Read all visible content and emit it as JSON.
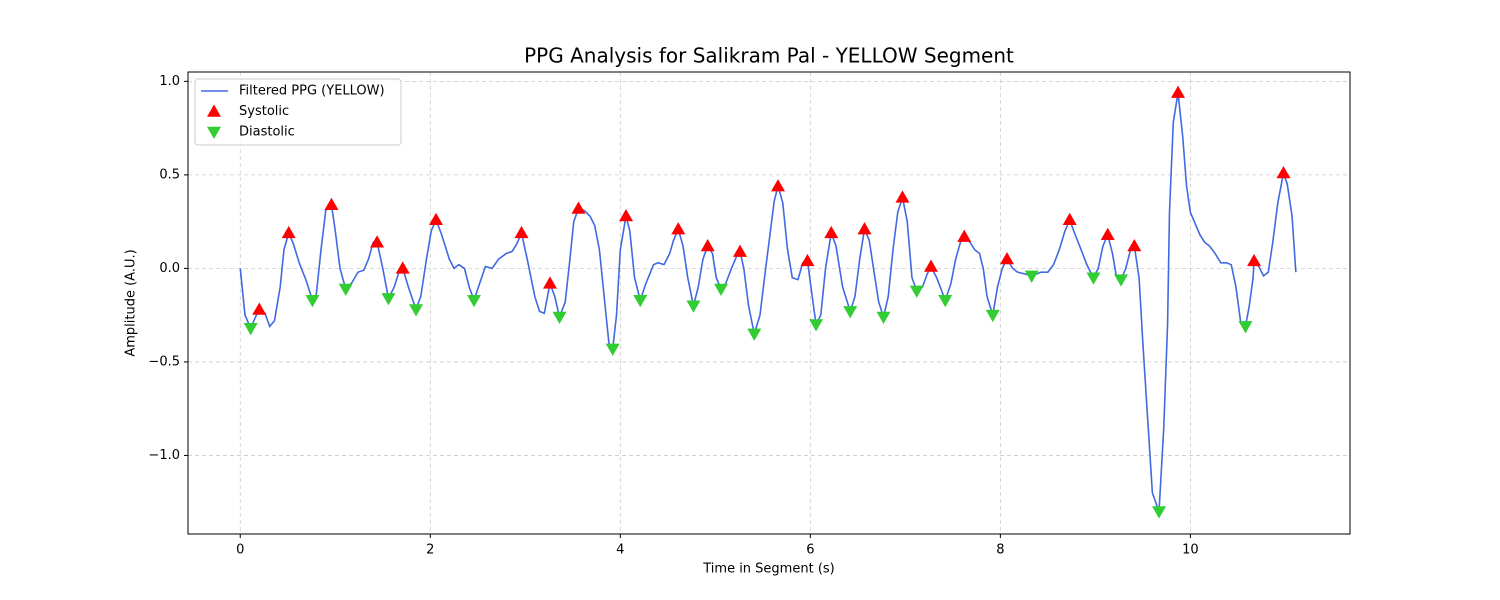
{
  "chart_data": {
    "type": "line",
    "title": "PPG Analysis for Salikram Pal - YELLOW Segment",
    "xlabel": "Time in Segment (s)",
    "ylabel": "Amplitude (A.U.)",
    "xlim": [
      -0.55,
      11.68
    ],
    "ylim": [
      -1.42,
      1.05
    ],
    "xticks": [
      0,
      2,
      4,
      6,
      8,
      10
    ],
    "yticks": [
      {
        "value": -1.0,
        "label": "−1.0"
      },
      {
        "value": -0.5,
        "label": "−0.5"
      },
      {
        "value": 0.0,
        "label": "0.0"
      },
      {
        "value": 0.5,
        "label": "0.5"
      },
      {
        "value": 1.0,
        "label": "1.0"
      }
    ],
    "grid": true,
    "legend": "upper left",
    "series": [
      {
        "name": "Filtered PPG (YELLOW)",
        "color": "#4169e1",
        "marker": "line",
        "x": [
          0,
          0.05,
          0.11,
          0.16,
          0.2,
          0.26,
          0.31,
          0.36,
          0.42,
          0.46,
          0.51,
          0.56,
          0.62,
          0.69,
          0.76,
          0.8,
          0.85,
          0.9,
          0.96,
          1.0,
          1.05,
          1.11,
          1.17,
          1.24,
          1.3,
          1.35,
          1.4,
          1.44,
          1.5,
          1.56,
          1.62,
          1.67,
          1.71,
          1.77,
          1.85,
          1.9,
          1.96,
          2.01,
          2.06,
          2.12,
          2.2,
          2.25,
          2.3,
          2.36,
          2.41,
          2.46,
          2.52,
          2.58,
          2.65,
          2.72,
          2.8,
          2.86,
          2.91,
          2.96,
          3.02,
          3.1,
          3.15,
          3.2,
          3.26,
          3.31,
          3.36,
          3.42,
          3.47,
          3.51,
          3.56,
          3.62,
          3.68,
          3.73,
          3.78,
          3.84,
          3.88,
          3.92,
          3.96,
          4.0,
          4.06,
          4.1,
          4.15,
          4.21,
          4.27,
          4.35,
          4.4,
          4.46,
          4.52,
          4.56,
          4.61,
          4.66,
          4.71,
          4.77,
          4.82,
          4.87,
          4.92,
          4.97,
          5.01,
          5.06,
          5.11,
          5.17,
          5.22,
          5.26,
          5.3,
          5.35,
          5.41,
          5.47,
          5.53,
          5.58,
          5.62,
          5.66,
          5.71,
          5.76,
          5.81,
          5.87,
          5.92,
          5.97,
          6.02,
          6.06,
          6.11,
          6.16,
          6.22,
          6.27,
          6.34,
          6.42,
          6.47,
          6.52,
          6.57,
          6.62,
          6.68,
          6.72,
          6.77,
          6.82,
          6.87,
          6.92,
          6.97,
          7.02,
          7.07,
          7.12,
          7.18,
          7.23,
          7.27,
          7.33,
          7.42,
          7.48,
          7.53,
          7.58,
          7.62,
          7.68,
          7.73,
          7.78,
          7.82,
          7.86,
          7.92,
          7.97,
          8.02,
          8.07,
          8.13,
          8.18,
          8.26,
          8.33,
          8.38,
          8.43,
          8.5,
          8.56,
          8.62,
          8.68,
          8.73,
          8.78,
          8.85,
          8.91,
          8.98,
          9.03,
          9.08,
          9.13,
          9.18,
          9.22,
          9.27,
          9.32,
          9.37,
          9.41,
          9.46,
          9.5,
          9.55,
          9.6,
          9.67,
          9.72,
          9.76,
          9.78,
          9.82,
          9.87,
          9.92,
          9.96,
          10.0,
          10.05,
          10.1,
          10.15,
          10.2,
          10.26,
          10.32,
          10.38,
          10.43,
          10.48,
          10.53,
          10.58,
          10.62,
          10.66,
          10.67,
          10.72,
          10.77,
          10.82,
          10.87,
          10.92,
          10.98,
          11.02,
          11.07,
          11.11
        ],
        "values": [
          0,
          -0.25,
          -0.32,
          -0.26,
          -0.22,
          -0.24,
          -0.31,
          -0.28,
          -0.1,
          0.1,
          0.19,
          0.13,
          0.03,
          -0.06,
          -0.17,
          -0.14,
          0.1,
          0.31,
          0.34,
          0.2,
          0.0,
          -0.11,
          -0.08,
          -0.02,
          -0.01,
          0.05,
          0.14,
          0.14,
          0.0,
          -0.16,
          -0.1,
          -0.02,
          0.0,
          -0.1,
          -0.22,
          -0.15,
          0.05,
          0.2,
          0.26,
          0.18,
          0.05,
          0.0,
          0.02,
          0.0,
          -0.1,
          -0.17,
          -0.08,
          0.01,
          0.0,
          0.05,
          0.08,
          0.09,
          0.13,
          0.19,
          0.05,
          -0.15,
          -0.23,
          -0.24,
          -0.08,
          -0.15,
          -0.26,
          -0.18,
          0.05,
          0.25,
          0.32,
          0.31,
          0.28,
          0.23,
          0.1,
          -0.2,
          -0.4,
          -0.43,
          -0.25,
          0.1,
          0.28,
          0.2,
          -0.05,
          -0.17,
          -0.08,
          0.02,
          0.03,
          0.02,
          0.08,
          0.15,
          0.21,
          0.12,
          -0.05,
          -0.2,
          -0.1,
          0.05,
          0.12,
          0.08,
          -0.05,
          -0.11,
          -0.08,
          0.0,
          0.06,
          0.09,
          0.0,
          -0.2,
          -0.35,
          -0.25,
          0.0,
          0.2,
          0.36,
          0.44,
          0.35,
          0.1,
          -0.05,
          -0.06,
          0.03,
          0.04,
          -0.15,
          -0.3,
          -0.25,
          0.0,
          0.19,
          0.12,
          -0.1,
          -0.23,
          -0.15,
          0.05,
          0.21,
          0.15,
          -0.05,
          -0.18,
          -0.26,
          -0.15,
          0.1,
          0.3,
          0.38,
          0.25,
          -0.05,
          -0.12,
          -0.1,
          -0.03,
          0.01,
          -0.05,
          -0.17,
          -0.08,
          0.05,
          0.14,
          0.17,
          0.14,
          0.1,
          0.08,
          0.0,
          -0.15,
          -0.25,
          -0.1,
          0.0,
          0.05,
          0.0,
          -0.02,
          -0.03,
          -0.04,
          -0.03,
          -0.02,
          -0.02,
          0.02,
          0.1,
          0.2,
          0.26,
          0.19,
          0.1,
          0.02,
          -0.05,
          0.0,
          0.12,
          0.18,
          0.08,
          -0.04,
          -0.06,
          0.0,
          0.1,
          0.12,
          -0.05,
          -0.4,
          -0.8,
          -1.2,
          -1.3,
          -0.85,
          -0.3,
          0.3,
          0.78,
          0.94,
          0.7,
          0.44,
          0.3,
          0.24,
          0.18,
          0.14,
          0.12,
          0.08,
          0.03,
          0.03,
          0.02,
          -0.1,
          -0.29,
          -0.31,
          -0.2,
          -0.05,
          0.04,
          0.01,
          -0.04,
          -0.02,
          0.15,
          0.35,
          0.51,
          0.45,
          0.28,
          -0.02
        ]
      },
      {
        "name": "Systolic",
        "color": "#ff0000",
        "marker": "triangle-up",
        "x": [
          0.2,
          0.51,
          0.96,
          1.44,
          1.71,
          2.06,
          2.96,
          3.26,
          3.56,
          4.06,
          4.61,
          4.92,
          5.26,
          5.66,
          5.97,
          6.22,
          6.57,
          6.97,
          7.27,
          7.62,
          8.07,
          8.73,
          9.13,
          9.41,
          9.87,
          10.67,
          10.98
        ],
        "values": [
          -0.22,
          0.19,
          0.34,
          0.14,
          0.0,
          0.26,
          0.19,
          -0.08,
          0.32,
          0.28,
          0.21,
          0.12,
          0.09,
          0.44,
          0.04,
          0.19,
          0.21,
          0.38,
          0.01,
          0.17,
          0.05,
          0.26,
          0.18,
          0.12,
          0.94,
          0.04,
          0.51
        ]
      },
      {
        "name": "Diastolic",
        "color": "#32cd32",
        "marker": "triangle-down",
        "x": [
          0.11,
          0.76,
          1.11,
          1.56,
          1.85,
          2.46,
          3.36,
          3.92,
          4.21,
          4.77,
          5.06,
          5.41,
          6.06,
          6.42,
          6.77,
          7.12,
          7.42,
          7.92,
          8.33,
          8.98,
          9.27,
          9.67,
          10.58
        ],
        "values": [
          -0.32,
          -0.17,
          -0.11,
          -0.16,
          -0.22,
          -0.17,
          -0.26,
          -0.43,
          -0.17,
          -0.2,
          -0.11,
          -0.35,
          -0.3,
          -0.23,
          -0.26,
          -0.12,
          -0.17,
          -0.25,
          -0.04,
          -0.05,
          -0.06,
          -1.3,
          -0.31
        ]
      }
    ]
  }
}
